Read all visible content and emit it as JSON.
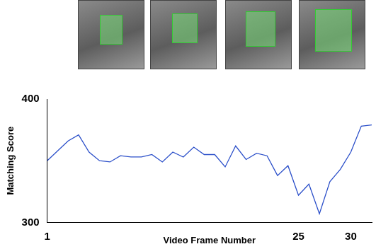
{
  "chart_data": {
    "type": "line",
    "x_label": "Video Frame Number",
    "y_label": "Matching Score",
    "x": [
      1,
      2,
      3,
      4,
      5,
      6,
      7,
      8,
      9,
      10,
      11,
      12,
      13,
      14,
      15,
      16,
      17,
      18,
      19,
      20,
      21,
      22,
      23,
      24,
      25,
      26,
      27,
      28,
      29,
      30,
      31,
      32
    ],
    "values": [
      350,
      358,
      366,
      371,
      357,
      350,
      349,
      354,
      353,
      353,
      355,
      349,
      357,
      353,
      361,
      355,
      355,
      345,
      362,
      351,
      356,
      354,
      338,
      346,
      322,
      331,
      307,
      333,
      343,
      357,
      378,
      379
    ],
    "color": "#2b4fc9",
    "xlim": [
      1,
      32
    ],
    "ylim": [
      300,
      400
    ],
    "xticks": [
      1,
      25,
      30
    ],
    "yticks": [
      300,
      400
    ],
    "grid": false
  }
}
